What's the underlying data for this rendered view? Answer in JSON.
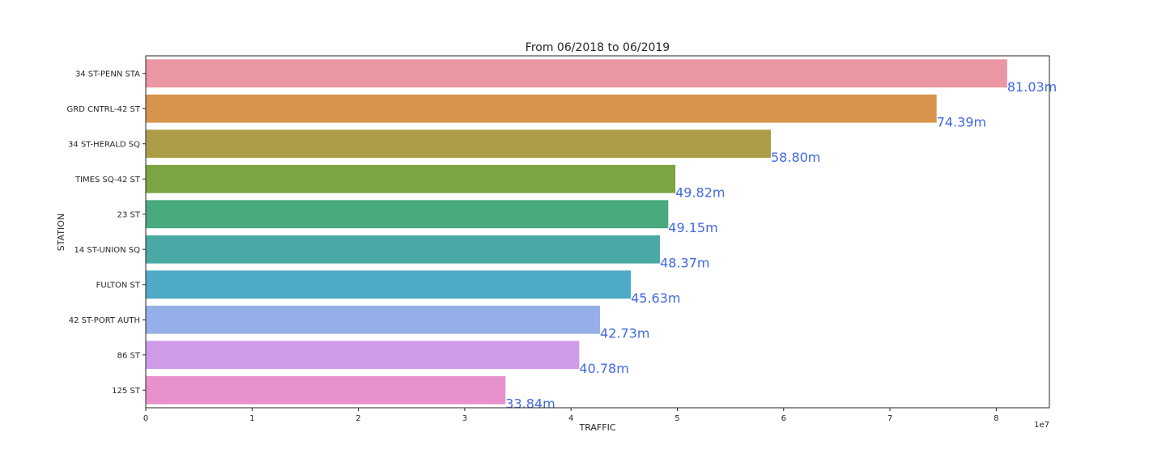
{
  "chart_data": {
    "type": "bar",
    "orientation": "horizontal",
    "title": "From 06/2018 to 06/2019",
    "xlabel": "TRAFFIC",
    "ylabel": "STATION",
    "x_offset_text": "1e7",
    "xlim": [
      0,
      8.5
    ],
    "x_ticks": [
      0,
      1,
      2,
      3,
      4,
      5,
      6,
      7,
      8
    ],
    "x_tick_labels": [
      "0",
      "1",
      "2",
      "3",
      "4",
      "5",
      "6",
      "7",
      "8"
    ],
    "grid": false,
    "label_color": "#4169e1",
    "categories": [
      "34 ST-PENN STA",
      "GRD CNTRL-42 ST",
      "34 ST-HERALD SQ",
      "TIMES SQ-42 ST",
      "23 ST",
      "14 ST-UNION SQ",
      "FULTON ST",
      "42 ST-PORT AUTH",
      "86 ST",
      "125 ST"
    ],
    "values": [
      8.103,
      7.439,
      5.88,
      4.982,
      4.915,
      4.837,
      4.563,
      4.273,
      4.078,
      3.384
    ],
    "data_labels": [
      "81.03m",
      "74.39m",
      "58.80m",
      "49.82m",
      "49.15m",
      "48.37m",
      "45.63m",
      "42.73m",
      "40.78m",
      "33.84m"
    ],
    "colors": [
      "#ea96a3",
      "#d8944d",
      "#ad9c47",
      "#7ba442",
      "#48aa7d",
      "#4aa9a5",
      "#4faac6",
      "#95afe8",
      "#cf9be9",
      "#e891cd"
    ]
  }
}
